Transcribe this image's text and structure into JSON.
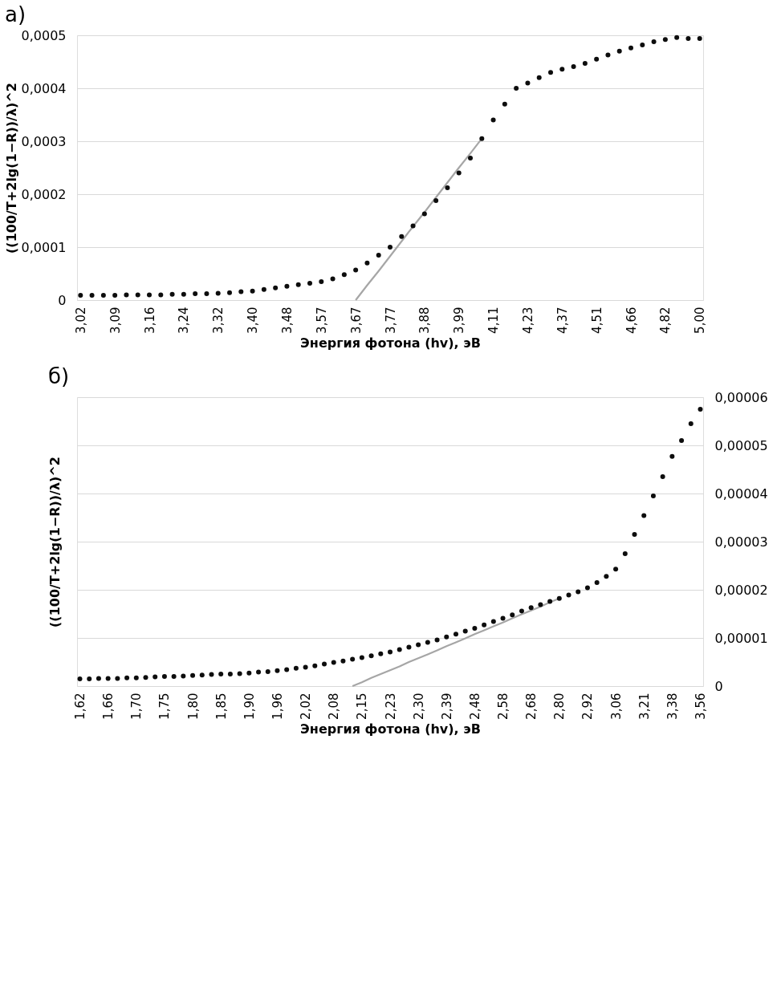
{
  "chart_data": [
    {
      "type": "scatter",
      "title": "a)",
      "xlabel": "Энергия фотона (hv), эВ",
      "ylabel": "((100/T+2lg(1−R))/λ)^2",
      "categories": [
        "3,02",
        null,
        null,
        "3,09",
        null,
        null,
        "3,16",
        null,
        null,
        "3,24",
        null,
        null,
        "3,32",
        null,
        null,
        "3,40",
        null,
        null,
        "3,48",
        null,
        null,
        "3,57",
        null,
        null,
        "3,67",
        null,
        null,
        "3,77",
        null,
        null,
        "3,88",
        null,
        null,
        "3,99",
        null,
        null,
        "4,11",
        null,
        null,
        "4,23",
        null,
        null,
        "4,37",
        null,
        null,
        "4,51",
        null,
        null,
        "4,66",
        null,
        null,
        "4,82",
        null,
        null,
        "5,00"
      ],
      "ylim": [
        0,
        0.0005
      ],
      "yticks": [
        0,
        {
          "value": 0.0001,
          "label": "0,0001"
        },
        {
          "value": 0.0002,
          "label": "0,0002"
        },
        {
          "value": 0.0003,
          "label": "0,0003"
        },
        {
          "value": 0.0004,
          "label": "0,0004"
        },
        {
          "value": 0.0005,
          "label": "0,0005"
        }
      ],
      "grid": "y",
      "series": [
        {
          "color": "#0d0d0d",
          "marker": "circle",
          "values": [
            9e-06,
            9e-06,
            9e-06,
            9e-06,
            1e-05,
            1e-05,
            1e-05,
            1e-05,
            1.1e-05,
            1.1e-05,
            1.2e-05,
            1.2e-05,
            1.3e-05,
            1.4e-05,
            1.6e-05,
            1.7e-05,
            2e-05,
            2.3e-05,
            2.6e-05,
            2.9e-05,
            3.2e-05,
            3.5e-05,
            4e-05,
            4.8e-05,
            5.7e-05,
            7e-05,
            8.5e-05,
            0.0001,
            0.00012,
            0.00014,
            0.000163,
            0.000188,
            0.000212,
            0.00024,
            0.000268,
            0.000305,
            0.00034,
            0.00037,
            0.0004,
            0.00041,
            0.00042,
            0.00043,
            0.000436,
            0.000441,
            0.000447,
            0.000455,
            0.000463,
            0.00047,
            0.000476,
            0.000482,
            0.000488,
            0.000492,
            0.000496,
            0.000494,
            0.000494
          ]
        },
        {
          "type": "line",
          "color": "#a6a6a6",
          "values": [
            null,
            null,
            null,
            null,
            null,
            null,
            null,
            null,
            null,
            null,
            null,
            null,
            null,
            null,
            null,
            null,
            null,
            null,
            null,
            null,
            null,
            null,
            null,
            null,
            0,
            2.8e-05,
            5.5e-05,
            8.3e-05,
            0.000111,
            0.000139,
            0.000166,
            0.000194,
            0.000222,
            0.00025,
            0.000277,
            0.000305,
            null,
            null,
            null,
            null,
            null,
            null,
            null,
            null,
            null,
            null,
            null,
            null,
            null,
            null,
            null,
            null,
            null,
            null,
            null
          ]
        }
      ]
    },
    {
      "type": "scatter",
      "title": "б)",
      "xlabel": "Энергия фотона (hv), эВ",
      "ylabel": "((100/T+2lg(1−R))/λ)^2",
      "categories": [
        "1,62",
        null,
        null,
        "1,66",
        null,
        null,
        "1,70",
        null,
        null,
        "1,75",
        null,
        null,
        "1,80",
        null,
        null,
        "1,85",
        null,
        null,
        "1,90",
        null,
        null,
        "1,96",
        null,
        null,
        "2,02",
        null,
        null,
        "2,08",
        null,
        null,
        "2,15",
        null,
        null,
        "2,23",
        null,
        null,
        "2,30",
        null,
        null,
        "2,39",
        null,
        null,
        "2,48",
        null,
        null,
        "2,58",
        null,
        null,
        "2,68",
        null,
        null,
        "2,80",
        null,
        null,
        "2,92",
        null,
        null,
        "3,06",
        null,
        null,
        "3,21",
        null,
        null,
        "3,38",
        null,
        null,
        "3,56"
      ],
      "y2lim": [
        0,
        6e-05
      ],
      "y2ticks": [
        0,
        {
          "value": 1e-05,
          "label": "0,00001"
        },
        {
          "value": 2e-05,
          "label": "0,00002"
        },
        {
          "value": 3e-05,
          "label": "0,00003"
        },
        {
          "value": 4e-05,
          "label": "0,00004"
        },
        {
          "value": 5e-05,
          "label": "0,00005"
        },
        {
          "value": 6e-05,
          "label": "0,00006"
        }
      ],
      "grid": "y",
      "series": [
        {
          "color": "#0d0d0d",
          "axis": "y2",
          "marker": "circle",
          "values": [
            1.5e-06,
            1.5e-06,
            1.6e-06,
            1.6e-06,
            1.6e-06,
            1.7e-06,
            1.7e-06,
            1.8e-06,
            1.9e-06,
            2e-06,
            2e-06,
            2.1e-06,
            2.2e-06,
            2.3e-06,
            2.4e-06,
            2.5e-06,
            2.5e-06,
            2.6e-06,
            2.7e-06,
            2.9e-06,
            3e-06,
            3.2e-06,
            3.4e-06,
            3.7e-06,
            3.9e-06,
            4.2e-06,
            4.6e-06,
            4.9e-06,
            5.2e-06,
            5.6e-06,
            5.9e-06,
            6.3e-06,
            6.7e-06,
            7.1e-06,
            7.6e-06,
            8.1e-06,
            8.6e-06,
            9.1e-06,
            9.6e-06,
            1.02e-05,
            1.08e-05,
            1.14e-05,
            1.2e-05,
            1.27e-05,
            1.34e-05,
            1.41e-05,
            1.48e-05,
            1.56e-05,
            1.63e-05,
            1.69e-05,
            1.76e-05,
            1.82e-05,
            1.89e-05,
            1.96e-05,
            2.04e-05,
            2.15e-05,
            2.28e-05,
            2.43e-05,
            2.75e-05,
            3.15e-05,
            3.54e-05,
            3.95e-05,
            4.35e-05,
            4.77e-05,
            5.1e-05,
            5.45e-05,
            5.75e-05
          ]
        },
        {
          "type": "line",
          "color": "#a6a6a6",
          "axis": "y2",
          "values": [
            null,
            null,
            null,
            null,
            null,
            null,
            null,
            null,
            null,
            null,
            null,
            null,
            null,
            null,
            null,
            null,
            null,
            null,
            null,
            null,
            null,
            null,
            null,
            null,
            null,
            null,
            null,
            null,
            null,
            0,
            8e-07,
            1.7e-06,
            2.5e-06,
            3.3e-06,
            4.1e-06,
            5e-06,
            5.8e-06,
            6.6e-06,
            7.4e-06,
            8.3e-06,
            9.1e-06,
            9.9e-06,
            1.08e-05,
            1.16e-05,
            1.24e-05,
            1.32e-05,
            1.41e-05,
            1.49e-05,
            1.57e-05,
            1.65e-05,
            1.74e-05,
            1.82e-05,
            null,
            null,
            null,
            null,
            null,
            null,
            null,
            null,
            null,
            null,
            null,
            null,
            null,
            null,
            null
          ]
        }
      ]
    }
  ]
}
